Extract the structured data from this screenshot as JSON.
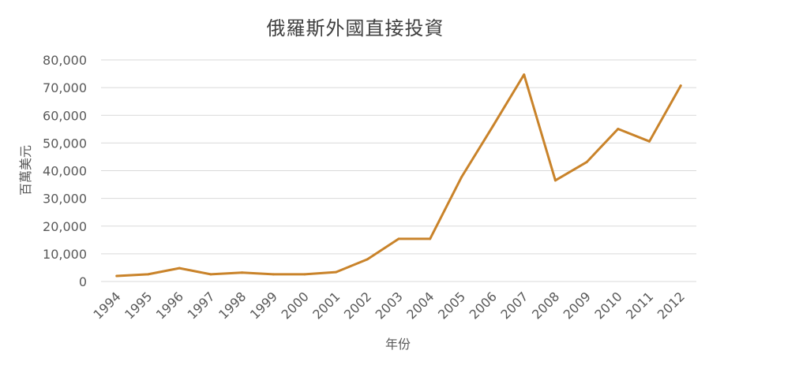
{
  "chart_data": {
    "type": "line",
    "title": "俄羅斯外國直接投資",
    "xlabel": "年份",
    "ylabel": "百萬美元",
    "ylim": [
      0,
      80000
    ],
    "yticks": [
      "0",
      "10,000",
      "20,000",
      "30,000",
      "40,000",
      "50,000",
      "60,000",
      "70,000",
      "80,000"
    ],
    "categories": [
      "1994",
      "1995",
      "1996",
      "1997",
      "1998",
      "1999",
      "2000",
      "2001",
      "2002",
      "2003",
      "2004",
      "2005",
      "2006",
      "2007",
      "2008",
      "2009",
      "2010",
      "2011",
      "2012"
    ],
    "series": [
      {
        "values": [
          2000,
          2600,
          4800,
          2600,
          3200,
          2600,
          2600,
          3400,
          8000,
          15400,
          15400,
          37600,
          56000,
          74700,
          36500,
          43100,
          55100,
          50600,
          70700
        ]
      }
    ],
    "grid": true,
    "legend": "none",
    "colors": {
      "line": "#c9832a",
      "grid": "#d9d9d9",
      "text": "#595959"
    }
  }
}
